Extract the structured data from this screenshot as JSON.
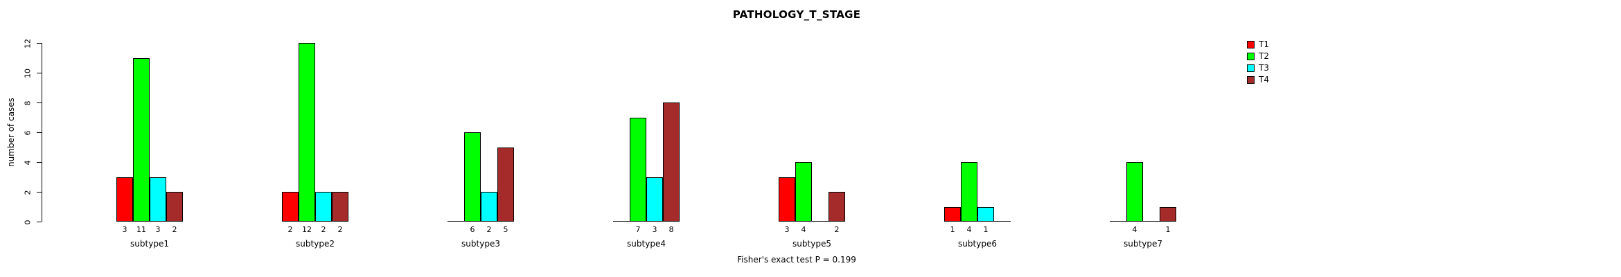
{
  "chart_data": {
    "type": "bar",
    "title": "PATHOLOGY_T_STAGE",
    "xlabel": "",
    "ylabel": "number of cases",
    "ylim": [
      0,
      12
    ],
    "yticks": [
      0,
      2,
      4,
      6,
      8,
      10,
      12
    ],
    "grid": false,
    "legend_position": "right",
    "bar_value_labels": true,
    "categories": [
      "subtype1",
      "subtype2",
      "subtype3",
      "subtype4",
      "subtype5",
      "subtype6",
      "subtype7"
    ],
    "series": [
      {
        "name": "T1",
        "color": "#FF0000",
        "values": [
          3,
          2,
          0,
          0,
          3,
          1,
          0
        ]
      },
      {
        "name": "T2",
        "color": "#00FF00",
        "values": [
          11,
          12,
          6,
          7,
          4,
          4,
          4
        ]
      },
      {
        "name": "T3",
        "color": "#00FFFF",
        "values": [
          3,
          2,
          2,
          3,
          0,
          1,
          0
        ]
      },
      {
        "name": "T4",
        "color": "#A52A2A",
        "values": [
          2,
          2,
          5,
          8,
          2,
          0,
          1
        ]
      }
    ],
    "footer": "Fisher's exact test P = 0.199"
  }
}
